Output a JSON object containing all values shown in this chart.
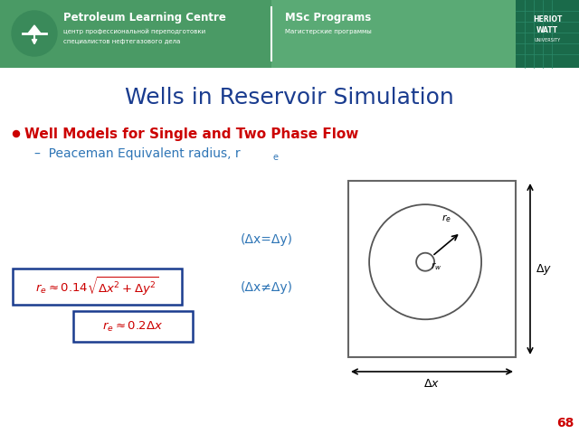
{
  "title": "Wells in Reservoir Simulation",
  "title_color": "#1a3c8f",
  "bullet_text": "Well Models for Single and Two Phase Flow",
  "bullet_color": "#cc0000",
  "sub_bullet_color": "#2e75b6",
  "header_green_dark": "#4a9a65",
  "header_green_mid": "#5aaa75",
  "header_green_light": "#6aba85",
  "header_hw_dark": "#1a6a4a",
  "white_bg": "#ffffff",
  "eq1_label": "(Δx=Δy)",
  "eq2_label": "(Δx≠Δy)",
  "formula_color": "#cc0000",
  "box_color": "#1a3c8f",
  "slide_num": "68",
  "slide_num_color": "#cc0000",
  "diagram_line_color": "#555555",
  "arrow_color": "#333333",
  "label_color": "#2e75b6"
}
